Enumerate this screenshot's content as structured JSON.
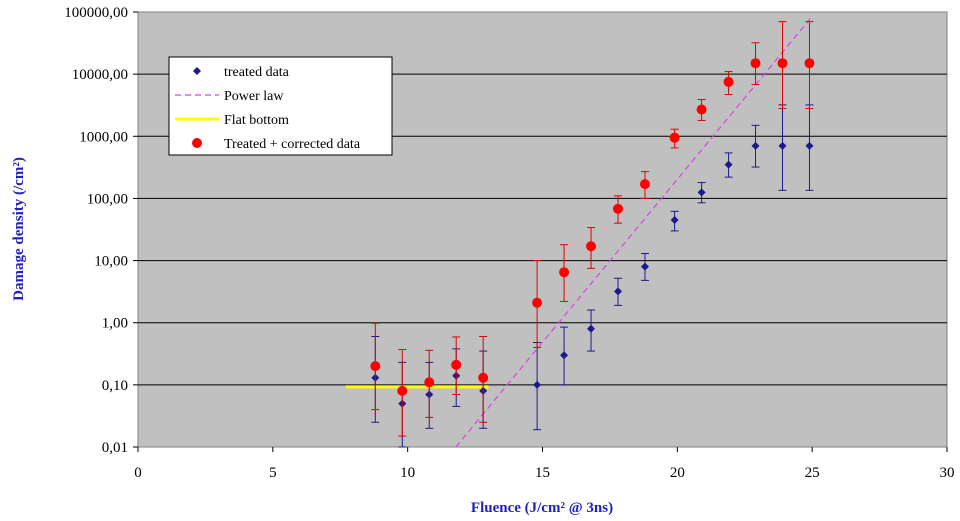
{
  "chart_data": {
    "type": "scatter",
    "title": "",
    "xlabel": "Fluence (J/cm² @ 3ns)",
    "ylabel": "Damage density (/cm²)",
    "xlim": [
      0,
      30
    ],
    "ylim": [
      0.01,
      100000
    ],
    "yscale": "log",
    "grid": "horizontal",
    "legend_position": "top-left",
    "x_ticks": [
      "0",
      "5",
      "10",
      "15",
      "20",
      "25",
      "30"
    ],
    "x_tick_values": [
      0,
      5,
      10,
      15,
      20,
      25,
      30
    ],
    "y_ticks": [
      "0,01",
      "0,10",
      "1,00",
      "10,00",
      "100,00",
      "1000,00",
      "10000,00",
      "100000,00"
    ],
    "y_tick_values": [
      0.01,
      0.1,
      1,
      10,
      100,
      1000,
      10000,
      100000
    ],
    "colors": {
      "plot_background": "#c0c0c0",
      "treated": "#1a1a8c",
      "corrected": "#ff0000",
      "power_law": "#e040e0",
      "flat_bottom": "#ffff00",
      "error_red": "#dd0000"
    },
    "series": [
      {
        "name": "treated data",
        "marker": "diamond",
        "points": [
          {
            "x": 8.8,
            "y": 0.13,
            "lo": 0.025,
            "hi": 0.6
          },
          {
            "x": 9.8,
            "y": 0.05,
            "lo": 0.01,
            "hi": 0.23
          },
          {
            "x": 10.8,
            "y": 0.07,
            "lo": 0.02,
            "hi": 0.23
          },
          {
            "x": 11.8,
            "y": 0.14,
            "lo": 0.045,
            "hi": 0.38
          },
          {
            "x": 12.8,
            "y": 0.08,
            "lo": 0.02,
            "hi": 0.35
          },
          {
            "x": 14.8,
            "y": 0.1,
            "lo": 0.019,
            "hi": 0.48
          },
          {
            "x": 15.8,
            "y": 0.3,
            "lo": 0.1,
            "hi": 0.85
          },
          {
            "x": 16.8,
            "y": 0.8,
            "lo": 0.35,
            "hi": 1.6
          },
          {
            "x": 17.8,
            "y": 3.2,
            "lo": 1.9,
            "hi": 5.2
          },
          {
            "x": 18.8,
            "y": 8,
            "lo": 4.8,
            "hi": 13
          },
          {
            "x": 19.9,
            "y": 45,
            "lo": 30,
            "hi": 62
          },
          {
            "x": 20.9,
            "y": 125,
            "lo": 85,
            "hi": 180
          },
          {
            "x": 21.9,
            "y": 350,
            "lo": 220,
            "hi": 540
          },
          {
            "x": 22.9,
            "y": 700,
            "lo": 320,
            "hi": 1500
          },
          {
            "x": 23.9,
            "y": 700,
            "lo": 135,
            "hi": 3200
          },
          {
            "x": 24.9,
            "y": 700,
            "lo": 135,
            "hi": 3200
          }
        ]
      },
      {
        "name": "Power law",
        "line": "dashed",
        "fit_points": [
          {
            "x": 11.6,
            "y": 0.008
          },
          {
            "x": 25,
            "y": 85000
          }
        ]
      },
      {
        "name": "Flat bottom",
        "line": "solid",
        "x_range": [
          7.7,
          13.0
        ],
        "y": 0.093
      },
      {
        "name": "Treated + corrected data",
        "marker": "circle",
        "points": [
          {
            "x": 8.8,
            "y": 0.2,
            "lo": 0.04,
            "hi": 0.98
          },
          {
            "x": 9.8,
            "y": 0.08,
            "lo": 0.015,
            "hi": 0.37
          },
          {
            "x": 10.8,
            "y": 0.11,
            "lo": 0.03,
            "hi": 0.36
          },
          {
            "x": 11.8,
            "y": 0.21,
            "lo": 0.07,
            "hi": 0.59
          },
          {
            "x": 12.8,
            "y": 0.13,
            "lo": 0.025,
            "hi": 0.6
          },
          {
            "x": 14.8,
            "y": 2.1,
            "lo": 0.4,
            "hi": 10
          },
          {
            "x": 15.8,
            "y": 6.5,
            "lo": 2.2,
            "hi": 18
          },
          {
            "x": 16.8,
            "y": 17,
            "lo": 7.5,
            "hi": 34
          },
          {
            "x": 17.8,
            "y": 68,
            "lo": 40,
            "hi": 110
          },
          {
            "x": 18.8,
            "y": 170,
            "lo": 100,
            "hi": 270
          },
          {
            "x": 19.9,
            "y": 950,
            "lo": 650,
            "hi": 1300
          },
          {
            "x": 20.9,
            "y": 2700,
            "lo": 1800,
            "hi": 3900
          },
          {
            "x": 21.9,
            "y": 7500,
            "lo": 4700,
            "hi": 11000
          },
          {
            "x": 22.9,
            "y": 15000,
            "lo": 6800,
            "hi": 32000
          },
          {
            "x": 23.9,
            "y": 15000,
            "lo": 2800,
            "hi": 70000
          },
          {
            "x": 24.9,
            "y": 15000,
            "lo": 2800,
            "hi": 70000
          }
        ]
      }
    ]
  }
}
